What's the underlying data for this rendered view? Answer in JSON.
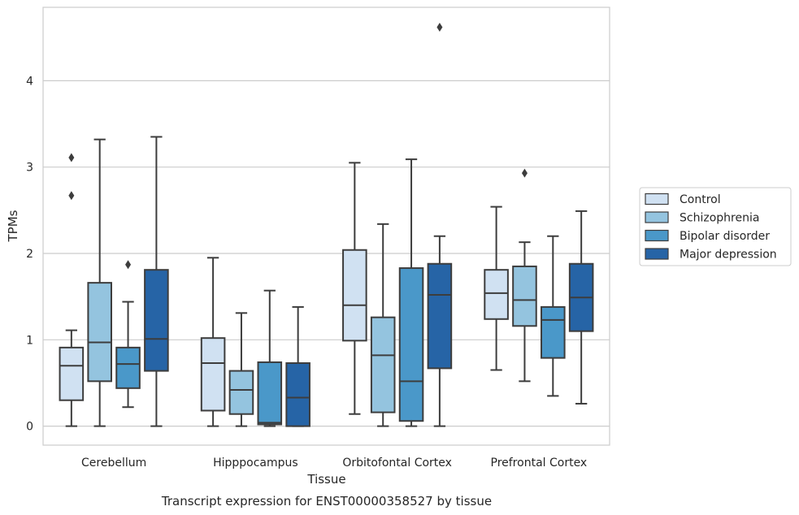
{
  "caption": "Transcript expression for ENST00000358527 by tissue",
  "chart_data": {
    "type": "boxplot",
    "xlabel": "Tissue",
    "ylabel": "TPMs",
    "ylim": [
      -0.22,
      4.85
    ],
    "yticks": [
      0,
      1,
      2,
      3,
      4
    ],
    "grid": "horizontal",
    "legend_position": "right",
    "categories": [
      "Cerebellum",
      "Hipppocampus",
      "Orbitofontal Cortex",
      "Prefrontal Cortex"
    ],
    "series": [
      {
        "name": "Control",
        "color": "#d0e1f2",
        "boxes": [
          {
            "whislo": 0.0,
            "q1": 0.3,
            "med": 0.7,
            "q3": 0.91,
            "whishi": 1.11,
            "fliers": [
              2.67,
              3.11
            ]
          },
          {
            "whislo": 0.0,
            "q1": 0.18,
            "med": 0.73,
            "q3": 1.02,
            "whishi": 1.95,
            "fliers": []
          },
          {
            "whislo": 0.14,
            "q1": 0.99,
            "med": 1.4,
            "q3": 2.04,
            "whishi": 3.05,
            "fliers": []
          },
          {
            "whislo": 0.65,
            "q1": 1.24,
            "med": 1.54,
            "q3": 1.81,
            "whishi": 2.54,
            "fliers": []
          }
        ]
      },
      {
        "name": "Schizophrenia",
        "color": "#94c4df",
        "boxes": [
          {
            "whislo": 0.0,
            "q1": 0.52,
            "med": 0.97,
            "q3": 1.66,
            "whishi": 3.32,
            "fliers": []
          },
          {
            "whislo": 0.0,
            "q1": 0.14,
            "med": 0.42,
            "q3": 0.64,
            "whishi": 1.31,
            "fliers": []
          },
          {
            "whislo": 0.0,
            "q1": 0.16,
            "med": 0.82,
            "q3": 1.26,
            "whishi": 2.34,
            "fliers": []
          },
          {
            "whislo": 0.52,
            "q1": 1.16,
            "med": 1.46,
            "q3": 1.85,
            "whishi": 2.13,
            "fliers": [
              2.93
            ]
          }
        ]
      },
      {
        "name": "Bipolar disorder",
        "color": "#4a98c9",
        "boxes": [
          {
            "whislo": 0.22,
            "q1": 0.44,
            "med": 0.72,
            "q3": 0.91,
            "whishi": 1.44,
            "fliers": [
              1.87
            ]
          },
          {
            "whislo": 0.0,
            "q1": 0.02,
            "med": 0.04,
            "q3": 0.74,
            "whishi": 1.57,
            "fliers": []
          },
          {
            "whislo": 0.0,
            "q1": 0.06,
            "med": 0.52,
            "q3": 1.83,
            "whishi": 3.09,
            "fliers": []
          },
          {
            "whislo": 0.35,
            "q1": 0.79,
            "med": 1.23,
            "q3": 1.38,
            "whishi": 2.2,
            "fliers": []
          }
        ]
      },
      {
        "name": "Major depression",
        "color": "#2664a6",
        "boxes": [
          {
            "whislo": 0.0,
            "q1": 0.64,
            "med": 1.01,
            "q3": 1.81,
            "whishi": 3.35,
            "fliers": []
          },
          {
            "whislo": 0.0,
            "q1": 0.0,
            "med": 0.33,
            "q3": 0.73,
            "whishi": 1.38,
            "fliers": []
          },
          {
            "whislo": 0.0,
            "q1": 0.67,
            "med": 1.52,
            "q3": 1.88,
            "whishi": 2.2,
            "fliers": [
              4.62
            ]
          },
          {
            "whislo": 0.26,
            "q1": 1.1,
            "med": 1.49,
            "q3": 1.88,
            "whishi": 2.49,
            "fliers": []
          }
        ]
      }
    ]
  }
}
